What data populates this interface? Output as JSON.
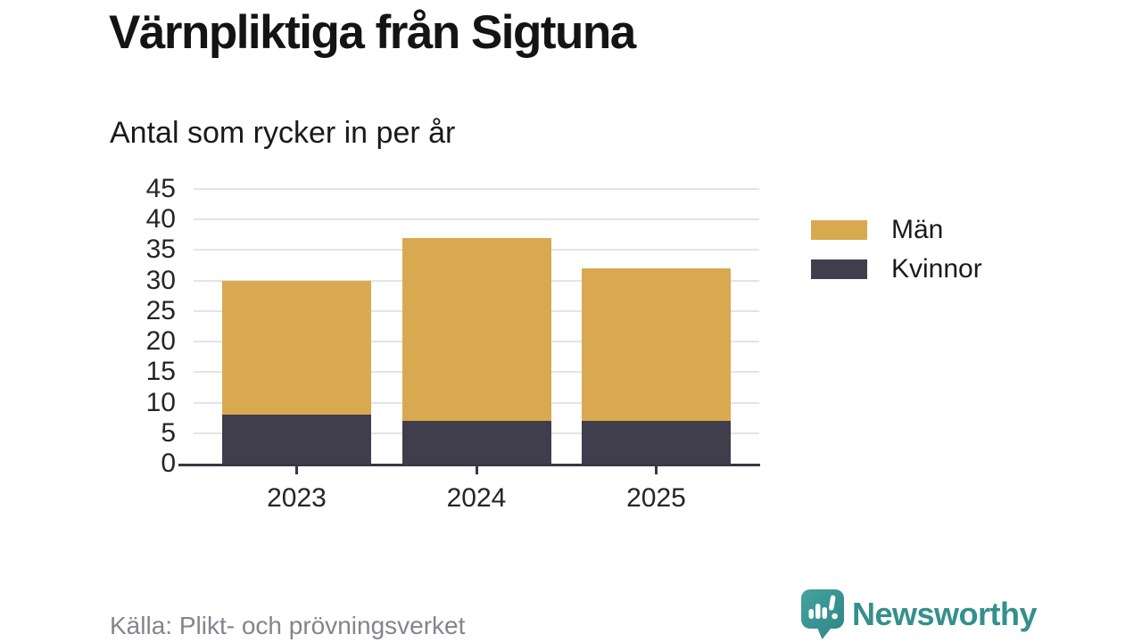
{
  "chart": {
    "title": "Värnpliktiga från Sigtuna",
    "subtitle": "Antal som rycker in per år"
  },
  "chart_data": {
    "type": "bar",
    "stacked": true,
    "title": "Värnpliktiga från Sigtuna",
    "subtitle": "Antal som rycker in per år",
    "categories": [
      "2023",
      "2024",
      "2025"
    ],
    "series": [
      {
        "name": "Män",
        "color": "#d8a94f",
        "values": [
          22,
          30,
          25
        ]
      },
      {
        "name": "Kvinnor",
        "color": "#403e4c",
        "values": [
          8,
          7,
          7
        ]
      }
    ],
    "totals": [
      30,
      37,
      32
    ],
    "xlabel": "",
    "ylabel": "",
    "ylim": [
      0,
      45
    ],
    "yticks": [
      0,
      5,
      10,
      15,
      20,
      25,
      30,
      35,
      40,
      45
    ],
    "grid": true,
    "legend_position": "right"
  },
  "footer": {
    "source": "Källa: Plikt- och prövningsverket",
    "brand": "Newsworthy"
  },
  "colors": {
    "men": "#d8a94f",
    "women": "#403e4c",
    "axis": "#3b3845",
    "grid": "#e4e4e4",
    "source_text": "#85848e",
    "brand_teal": "#33908d"
  }
}
